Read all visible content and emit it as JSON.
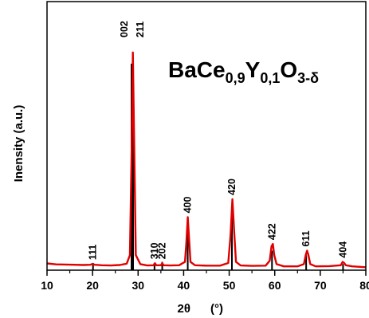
{
  "chart_data": {
    "type": "line",
    "title": "",
    "formula": {
      "base": "BaCe",
      "sub1": "0,9",
      "y": "Y",
      "sub2": "0,1",
      "o": "O",
      "sub3": "3-δ"
    },
    "xlabel": {
      "symbol": "2θ",
      "unit": "(°)"
    },
    "ylabel": "Inensity   (a.u.)",
    "xlim": [
      10,
      80
    ],
    "ylim": [
      0,
      100
    ],
    "xticks": [
      10,
      20,
      30,
      40,
      50,
      60,
      70,
      80
    ],
    "grid": false,
    "series": [
      {
        "color": "#e00000",
        "x": [
          10,
          12,
          14,
          16,
          18,
          19.5,
          20,
          20.5,
          22,
          24,
          26,
          27.5,
          28.2,
          28.6,
          28.85,
          29.1,
          29.5,
          30.5,
          32,
          33.4,
          33.7,
          34,
          35,
          35.3,
          35.6,
          37,
          39,
          40.3,
          40.6,
          40.9,
          41.2,
          41.5,
          42.5,
          45,
          48,
          49.8,
          50.3,
          50.7,
          51.1,
          51.5,
          52.5,
          55,
          58,
          58.9,
          59.3,
          59.6,
          59.9,
          60.4,
          62,
          65,
          66.4,
          66.8,
          67.1,
          67.4,
          67.8,
          69,
          72,
          74.5,
          74.9,
          75.2,
          75.6,
          77,
          80
        ],
        "y": [
          2.3,
          1.9,
          1.8,
          1.7,
          1.6,
          1.7,
          2.1,
          1.7,
          1.5,
          1.4,
          1.6,
          2.2,
          6,
          55,
          96.5,
          62,
          6,
          2,
          1.4,
          1.5,
          2.4,
          1.5,
          1.5,
          2.4,
          1.5,
          1.4,
          1.5,
          3,
          12,
          23,
          13,
          3,
          1.5,
          1.3,
          1.3,
          2.5,
          15,
          31,
          16,
          3,
          1.4,
          1.2,
          1.3,
          3.5,
          10,
          11,
          6,
          2,
          1,
          1,
          2,
          6,
          8,
          6,
          2,
          1,
          1.1,
          1.5,
          3,
          2.6,
          1.5,
          1,
          0.6
        ]
      }
    ],
    "reflections": [
      {
        "hkl": "111",
        "x": 20.1,
        "height": 2.5
      },
      {
        "hkl": "002",
        "x": 28.55,
        "height": 91.5
      },
      {
        "hkl": "211",
        "x": 28.9,
        "height": 90
      },
      {
        "hkl": "310",
        "x": 33.6,
        "height": 2.5
      },
      {
        "hkl": "202",
        "x": 35.3,
        "height": 3
      },
      {
        "hkl": "400",
        "x": 40.9,
        "height": 17
      },
      {
        "hkl": "420",
        "x": 50.6,
        "height": 25
      },
      {
        "hkl": "422",
        "x": 59.4,
        "height": 8
      },
      {
        "hkl": "611",
        "x": 66.9,
        "height": 6
      },
      {
        "hkl": "404",
        "x": 75.0,
        "height": 2
      }
    ]
  }
}
